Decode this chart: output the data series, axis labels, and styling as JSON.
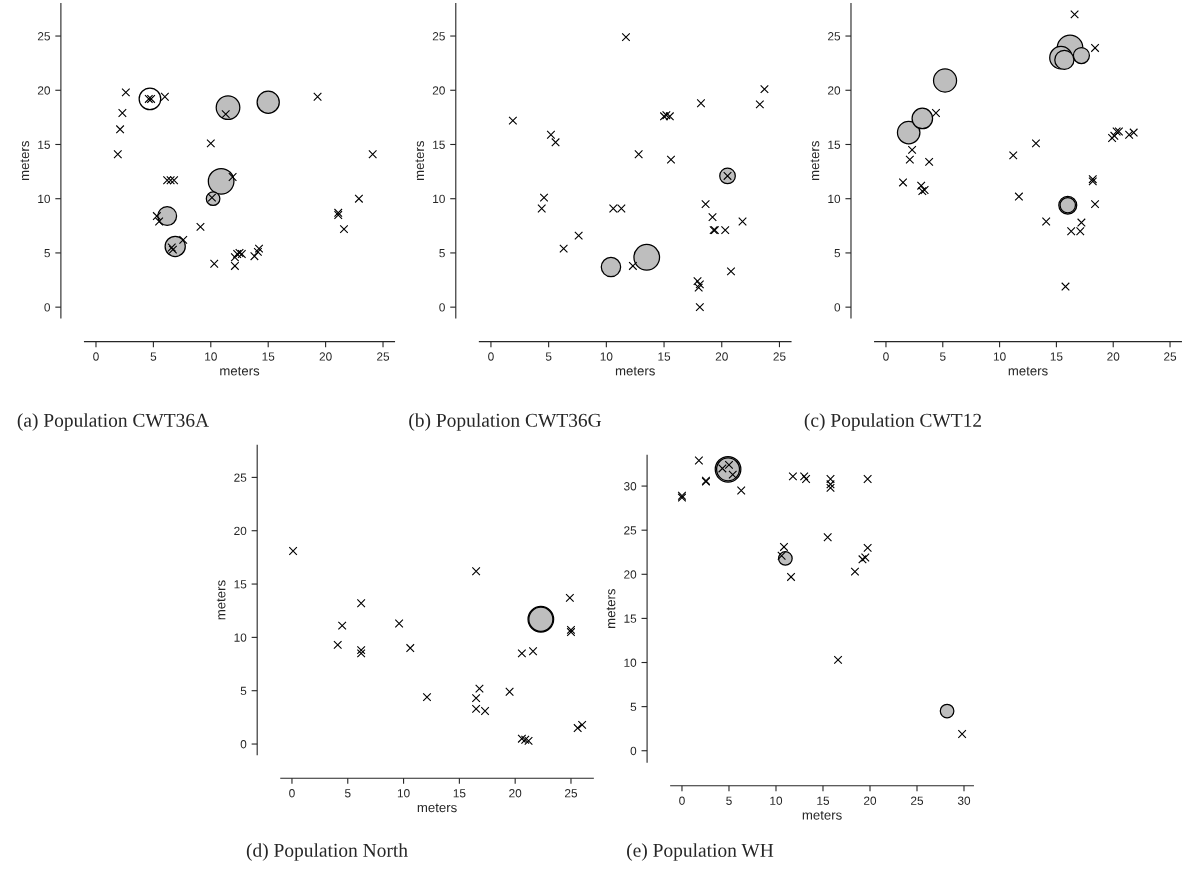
{
  "chart_data": [
    {
      "type": "scatter",
      "title": "(a) Population CWT36A",
      "xlabel": "meters",
      "ylabel": "meters",
      "xlim": [
        -1,
        26
      ],
      "ylim": [
        -1,
        28
      ],
      "xticks": [
        0,
        5,
        10,
        15,
        20,
        25
      ],
      "yticks": [
        0,
        5,
        10,
        15,
        20,
        25
      ],
      "series": [
        {
          "type": "bubble",
          "x": [
            4.7,
            11.5,
            15.0,
            10.9,
            10.2,
            6.2,
            6.9
          ],
          "values": [
            19.2,
            18.4,
            18.9,
            11.6,
            10.0,
            8.4,
            5.6
          ],
          "sizes": [
            0.71,
            0.85,
            0.75,
            1.0,
            0.28,
            0.54,
            0.62
          ],
          "colors": [
            "#ffffff",
            "#bebebe",
            "#bebebe",
            "#bebebe",
            "#bebebe",
            "#bebebe",
            "#bebebe"
          ]
        },
        {
          "type": "scatter",
          "marker": "cross",
          "color": "#000000",
          "x": [
            1.9,
            2.1,
            2.3,
            2.6,
            4.6,
            4.8,
            6.0,
            11.3,
            19.3,
            10.0,
            24.1,
            6.2,
            6.5,
            6.8,
            11.9,
            10.1,
            22.9,
            21.1,
            21.1,
            21.6,
            5.3,
            5.5,
            9.1,
            7.6,
            6.6,
            6.7,
            10.3,
            12.1,
            12.1,
            12.3,
            12.5,
            12.7,
            13.8,
            14.1,
            14.2
          ],
          "values": [
            14.1,
            16.4,
            17.9,
            19.8,
            19.2,
            19.2,
            19.4,
            17.8,
            19.4,
            15.1,
            14.1,
            11.7,
            11.7,
            11.7,
            12.0,
            10.1,
            10.0,
            8.7,
            8.5,
            7.2,
            8.4,
            7.9,
            7.4,
            6.2,
            5.5,
            5.3,
            4.0,
            4.6,
            3.8,
            4.9,
            5.0,
            4.9,
            4.7,
            5.1,
            5.4
          ]
        }
      ]
    },
    {
      "type": "scatter",
      "title": "(b) Population CWT36G",
      "xlabel": "meters",
      "ylabel": "meters",
      "xlim": [
        -1,
        26
      ],
      "ylim": [
        -1,
        28
      ],
      "xticks": [
        0,
        5,
        10,
        15,
        20,
        25
      ],
      "yticks": [
        0,
        5,
        10,
        15,
        20,
        25
      ],
      "series": [
        {
          "type": "bubble",
          "x": [
            20.5,
            10.4,
            13.5
          ],
          "values": [
            12.1,
            3.7,
            4.6
          ],
          "sizes": [
            0.37,
            0.57,
            1.0
          ],
          "colors": [
            "#bebebe",
            "#bebebe",
            "#bebebe"
          ]
        },
        {
          "type": "scatter",
          "marker": "cross",
          "color": "#000000",
          "x": [
            1.9,
            5.2,
            5.6,
            4.6,
            4.4,
            6.3,
            7.6,
            10.6,
            11.3,
            11.7,
            12.3,
            12.8,
            15.0,
            15.2,
            15.5,
            15.6,
            18.2,
            18.6,
            19.2,
            19.3,
            19.4,
            20.3,
            20.5,
            21.8,
            20.8,
            17.9,
            18.1,
            18.0,
            18.1,
            23.3,
            23.7
          ],
          "values": [
            17.2,
            15.9,
            15.2,
            10.1,
            9.1,
            5.4,
            6.6,
            9.1,
            9.1,
            24.9,
            3.8,
            14.1,
            17.6,
            17.7,
            17.6,
            13.6,
            18.8,
            9.5,
            8.3,
            7.1,
            7.1,
            7.1,
            12.1,
            7.9,
            3.3,
            2.4,
            2.1,
            1.8,
            0.0,
            18.7,
            20.1
          ]
        }
      ]
    },
    {
      "type": "scatter",
      "title": "(c) Population CWT12",
      "xlabel": "meters",
      "ylabel": "meters",
      "xlim": [
        -1,
        26
      ],
      "ylim": [
        -1,
        28
      ],
      "xticks": [
        0,
        5,
        10,
        15,
        20,
        25
      ],
      "yticks": [
        0,
        5,
        10,
        15,
        20,
        25
      ],
      "series": [
        {
          "type": "bubble",
          "x": [
            2.0,
            3.2,
            5.2,
            16.2,
            17.2,
            15.4,
            15.7,
            16.0,
            16.0
          ],
          "values": [
            16.1,
            17.4,
            20.9,
            23.9,
            23.2,
            23.0,
            22.8,
            9.4,
            9.4
          ],
          "sizes": [
            0.77,
            0.64,
            0.81,
            1.0,
            0.39,
            0.77,
            0.56,
            0.49,
            0.36
          ],
          "colors": [
            "#bebebe",
            "#bebebe",
            "#bebebe",
            "#bebebe",
            "#bebebe",
            "#bebebe",
            "#bebebe",
            "#bebebe",
            "#bebebe"
          ]
        },
        {
          "type": "scatter",
          "marker": "cross",
          "color": "#000000",
          "x": [
            1.5,
            2.1,
            2.3,
            3.8,
            3.1,
            3.2,
            3.4,
            4.4,
            11.2,
            11.7,
            13.2,
            14.1,
            16.6,
            15.8,
            16.3,
            17.1,
            17.2,
            18.2,
            18.2,
            18.4,
            18.4,
            19.9,
            20.1,
            20.3,
            20.5,
            21.4,
            21.8
          ],
          "values": [
            11.5,
            13.6,
            14.5,
            13.4,
            11.2,
            10.7,
            10.8,
            17.9,
            14.0,
            10.2,
            15.1,
            7.9,
            27.0,
            1.9,
            7.0,
            7.0,
            7.8,
            11.6,
            11.8,
            9.5,
            23.9,
            15.6,
            15.8,
            16.2,
            16.2,
            15.9,
            16.1
          ]
        }
      ]
    },
    {
      "type": "scatter",
      "title": "(d) Population North",
      "xlabel": "meters",
      "ylabel": "meters",
      "xlim": [
        -1,
        27
      ],
      "ylim": [
        -1,
        28
      ],
      "xticks": [
        0,
        5,
        10,
        15,
        20,
        25
      ],
      "yticks": [
        0,
        5,
        10,
        15,
        20,
        25
      ],
      "series": [
        {
          "type": "bubble",
          "x": [
            22.3,
            22.3
          ],
          "values": [
            11.7,
            11.7
          ],
          "sizes": [
            1.0,
            0.88
          ],
          "colors": [
            "#bebebe",
            "#bebebe"
          ]
        },
        {
          "type": "scatter",
          "marker": "cross",
          "color": "#000000",
          "x": [
            0.1,
            4.1,
            4.5,
            6.2,
            6.2,
            6.2,
            9.6,
            10.6,
            12.1,
            16.5,
            16.8,
            16.5,
            16.5,
            17.3,
            19.5,
            20.6,
            21.6,
            20.6,
            20.9,
            21.2,
            24.9,
            25.0,
            25.0,
            25.6,
            26.0
          ],
          "values": [
            18.1,
            9.3,
            11.1,
            8.8,
            8.5,
            13.2,
            11.3,
            9.0,
            4.4,
            16.2,
            5.2,
            4.3,
            3.3,
            3.1,
            4.9,
            8.5,
            8.7,
            0.5,
            0.4,
            0.3,
            13.7,
            10.7,
            10.5,
            1.5,
            1.8
          ]
        }
      ]
    },
    {
      "type": "scatter",
      "title": "(e) Population WH",
      "xlabel": "meters",
      "ylabel": "meters",
      "xlim": [
        -1.2,
        31
      ],
      "ylim": [
        -1.3,
        33.5
      ],
      "xticks": [
        0,
        5,
        10,
        15,
        20,
        25,
        30
      ],
      "yticks": [
        0,
        5,
        10,
        15,
        20,
        25,
        30
      ],
      "series": [
        {
          "type": "bubble",
          "x": [
            4.9,
            4.9,
            11.0,
            28.2
          ],
          "values": [
            31.9,
            31.9,
            21.8,
            4.5
          ],
          "sizes": [
            1.0,
            0.8,
            0.28,
            0.28
          ],
          "colors": [
            "#bebebe",
            "#bebebe",
            "#bebebe",
            "#bebebe"
          ]
        },
        {
          "type": "scatter",
          "marker": "cross",
          "color": "#000000",
          "x": [
            0.0,
            0.0,
            1.8,
            2.55,
            2.55,
            4.3,
            5.0,
            5.4,
            6.3,
            10.85,
            10.6,
            11.6,
            11.8,
            13.0,
            13.2,
            15.5,
            15.8,
            15.8,
            15.8,
            16.6,
            18.4,
            19.2,
            19.5,
            19.75,
            19.75,
            29.8
          ],
          "values": [
            28.9,
            28.7,
            32.9,
            30.6,
            30.5,
            32.0,
            32.4,
            31.3,
            29.5,
            23.1,
            22.1,
            19.7,
            31.1,
            31.1,
            30.8,
            24.2,
            30.8,
            30.2,
            29.8,
            10.3,
            20.3,
            21.7,
            21.9,
            23.0,
            30.8,
            1.9
          ]
        }
      ]
    }
  ]
}
